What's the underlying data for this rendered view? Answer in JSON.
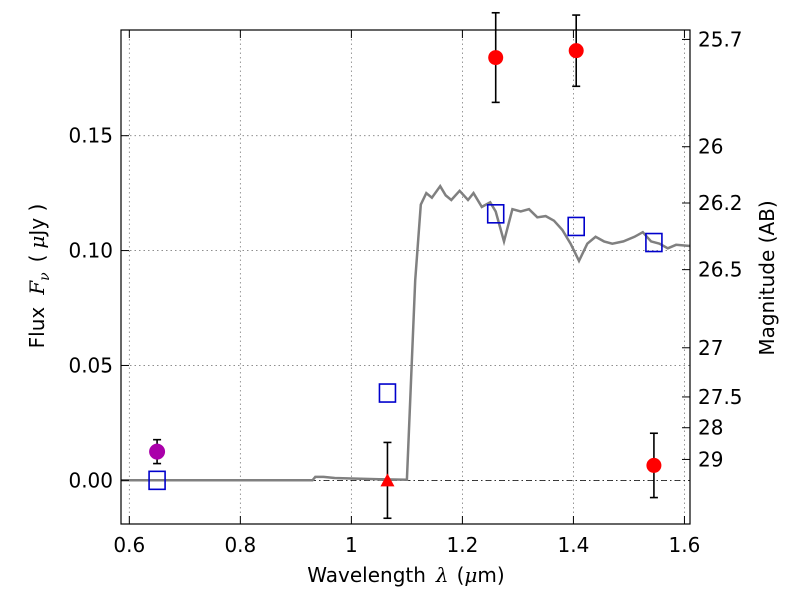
{
  "chart_data": {
    "type": "scatter",
    "xlabel_prefix": "Wavelength",
    "xlabel_symbol": "λ",
    "xlabel_unit_open": "(",
    "xlabel_unit_mu": "μ",
    "xlabel_unit_rest": "m)",
    "ylabel_prefix": "Flux",
    "ylabel_symbol": "F",
    "ylabel_subscript": "ν",
    "ylabel_unit_open": "(",
    "ylabel_unit_mu": "μ",
    "ylabel_unit_rest": "Jy )",
    "y2label": "Magnitude (AB)",
    "xlim": [
      0.585,
      1.61
    ],
    "ylim": [
      -0.019,
      0.196
    ],
    "x_ticks": [
      {
        "value": 0.6,
        "label": "0.6"
      },
      {
        "value": 0.8,
        "label": "0.8"
      },
      {
        "value": 1.0,
        "label": "1"
      },
      {
        "value": 1.2,
        "label": "1.2"
      },
      {
        "value": 1.4,
        "label": "1.4"
      },
      {
        "value": 1.6,
        "label": "1.6"
      }
    ],
    "y_ticks": [
      {
        "value": 0.0,
        "label": "0.00"
      },
      {
        "value": 0.05,
        "label": "0.05"
      },
      {
        "value": 0.1,
        "label": "0.10"
      },
      {
        "value": 0.15,
        "label": "0.15"
      }
    ],
    "mag_ticks": [
      {
        "flux": 0.1919,
        "label": "25.7"
      },
      {
        "flux": 0.1452,
        "label": "26"
      },
      {
        "flux": 0.1207,
        "label": "26.2"
      },
      {
        "flux": 0.0917,
        "label": "26.5"
      },
      {
        "flux": 0.0577,
        "label": "27"
      },
      {
        "flux": 0.0363,
        "label": "27.5"
      },
      {
        "flux": 0.0229,
        "label": "28"
      },
      {
        "flux": 0.0091,
        "label": "29"
      }
    ],
    "grid": true,
    "model_spectrum": {
      "color": "#808080",
      "points": [
        [
          0.585,
          0.0
        ],
        [
          0.93,
          0.0
        ],
        [
          0.935,
          0.0015
        ],
        [
          0.95,
          0.0015
        ],
        [
          0.97,
          0.001
        ],
        [
          1.0,
          0.0008
        ],
        [
          1.05,
          0.0005
        ],
        [
          1.1,
          0.0003
        ],
        [
          1.115,
          0.087
        ],
        [
          1.125,
          0.12
        ],
        [
          1.135,
          0.125
        ],
        [
          1.145,
          0.123
        ],
        [
          1.16,
          0.128
        ],
        [
          1.17,
          0.124
        ],
        [
          1.18,
          0.122
        ],
        [
          1.195,
          0.126
        ],
        [
          1.21,
          0.122
        ],
        [
          1.22,
          0.125
        ],
        [
          1.235,
          0.119
        ],
        [
          1.25,
          0.121
        ],
        [
          1.26,
          0.117
        ],
        [
          1.275,
          0.104
        ],
        [
          1.29,
          0.118
        ],
        [
          1.305,
          0.117
        ],
        [
          1.32,
          0.118
        ],
        [
          1.335,
          0.1145
        ],
        [
          1.35,
          0.115
        ],
        [
          1.365,
          0.113
        ],
        [
          1.38,
          0.109
        ],
        [
          1.395,
          0.103
        ],
        [
          1.41,
          0.0955
        ],
        [
          1.425,
          0.103
        ],
        [
          1.44,
          0.106
        ],
        [
          1.455,
          0.104
        ],
        [
          1.47,
          0.103
        ],
        [
          1.49,
          0.104
        ],
        [
          1.51,
          0.106
        ],
        [
          1.525,
          0.108
        ],
        [
          1.54,
          0.104
        ],
        [
          1.555,
          0.103
        ],
        [
          1.57,
          0.101
        ],
        [
          1.585,
          0.1025
        ],
        [
          1.61,
          0.102
        ]
      ]
    },
    "model_points": {
      "color": "#0000cc",
      "points": [
        [
          0.65,
          0.0
        ],
        [
          1.065,
          0.038
        ],
        [
          1.26,
          0.116
        ],
        [
          1.405,
          0.1105
        ],
        [
          1.545,
          0.1035
        ]
      ]
    },
    "detections": {
      "color": "#ff0000",
      "points": [
        {
          "x": 1.26,
          "y": 0.184,
          "err": 0.0195
        },
        {
          "x": 1.405,
          "y": 0.187,
          "err": 0.0155
        },
        {
          "x": 1.545,
          "y": 0.0065,
          "err": 0.014
        }
      ]
    },
    "upper_limit": {
      "color": "#ff0000",
      "point": {
        "x": 1.065,
        "y": 0.0,
        "err": 0.0165
      }
    },
    "optical_point": {
      "color": "#aa00aa",
      "point": {
        "x": 0.65,
        "y": 0.0125,
        "err": 0.0052
      }
    }
  }
}
